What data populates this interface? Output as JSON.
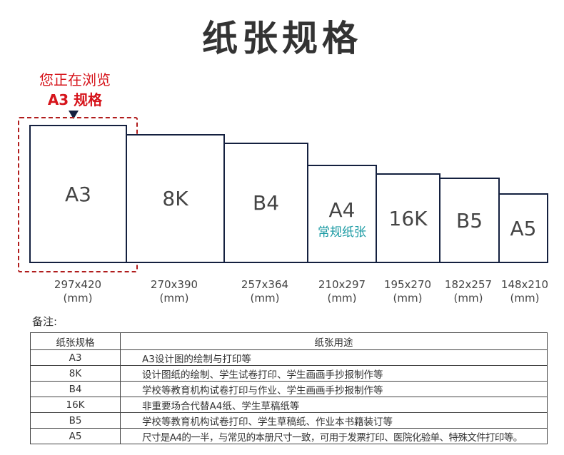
{
  "title": "纸张规格",
  "indicator": {
    "line1": "您正在浏览",
    "line2": "A3 规格",
    "color": "#d6141b"
  },
  "papers": [
    {
      "name": "A3",
      "size": "297x420",
      "unit": "(mm)"
    },
    {
      "name": "8K",
      "size": "270x390",
      "unit": "(mm)"
    },
    {
      "name": "B4",
      "size": "257x364",
      "unit": "(mm)"
    },
    {
      "name": "A4",
      "sub": "常规纸张",
      "size": "210x297",
      "unit": "(mm)"
    },
    {
      "name": "16K",
      "size": "195x270",
      "unit": "(mm)"
    },
    {
      "name": "B5",
      "size": "182x257",
      "unit": "(mm)"
    },
    {
      "name": "A5",
      "size": "148x210",
      "unit": "(mm)"
    }
  ],
  "note_label": "备注:",
  "table": {
    "headers": [
      "纸张规格",
      "纸张用途"
    ],
    "rows": [
      [
        "A3",
        "A3设计图的绘制与打印等"
      ],
      [
        "8K",
        "设计图纸的绘制、学生试卷打印、学生画画手抄报制作等"
      ],
      [
        "B4",
        "学校等教育机构试卷打印与作业、学生画画手抄报制作等"
      ],
      [
        "16K",
        "非重要场合代替A4纸、学生草稿纸等"
      ],
      [
        "B5",
        "学校等教育机构试卷打印、学生草稿纸、作业本书籍装订等"
      ],
      [
        "A5",
        "尺寸是A4的一半，与常见的本册尺寸一致，可用于发票打印、医院化验单、特殊文件打印等。"
      ]
    ]
  }
}
